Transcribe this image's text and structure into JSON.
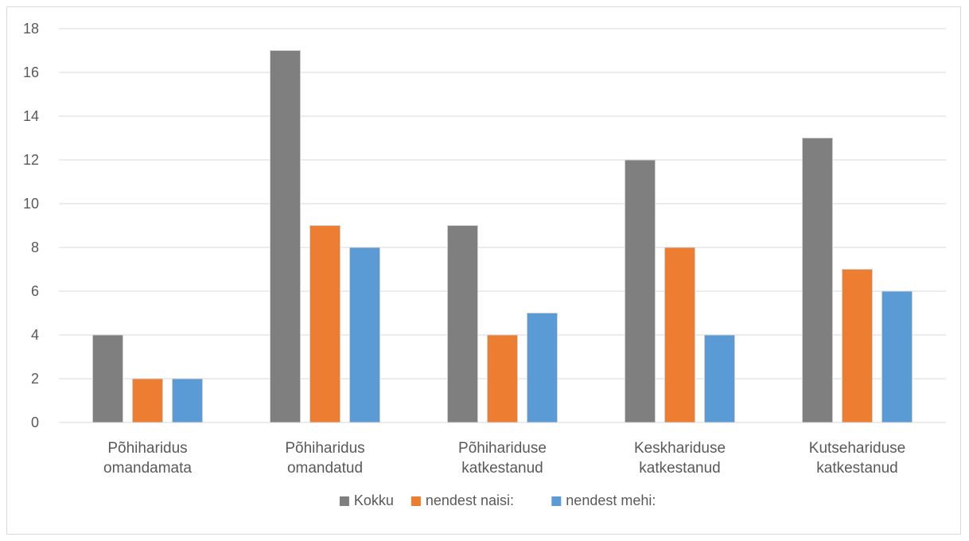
{
  "chart_data": {
    "type": "bar",
    "categories": [
      [
        "Põhiharidus",
        "omandamata"
      ],
      [
        "Põhiharidus",
        "omandatud"
      ],
      [
        "Põhihariduse",
        "katkestanud"
      ],
      [
        "Keskhariduse",
        "katkestanud"
      ],
      [
        "Kutsehariduse",
        "katkestanud"
      ]
    ],
    "series": [
      {
        "name": "Kokku",
        "color": "#7f7f7f",
        "values": [
          4,
          17,
          9,
          12,
          13
        ]
      },
      {
        "name": "nendest naisi:",
        "color": "#ed7d31",
        "values": [
          2,
          9,
          4,
          8,
          7
        ]
      },
      {
        "name": "nendest mehi:",
        "color": "#5b9bd5",
        "values": [
          2,
          8,
          5,
          4,
          6
        ]
      }
    ],
    "ylim": [
      0,
      18
    ],
    "yticks": [
      0,
      2,
      4,
      6,
      8,
      10,
      12,
      14,
      16,
      18
    ],
    "grid": true,
    "legend_position": "bottom"
  }
}
